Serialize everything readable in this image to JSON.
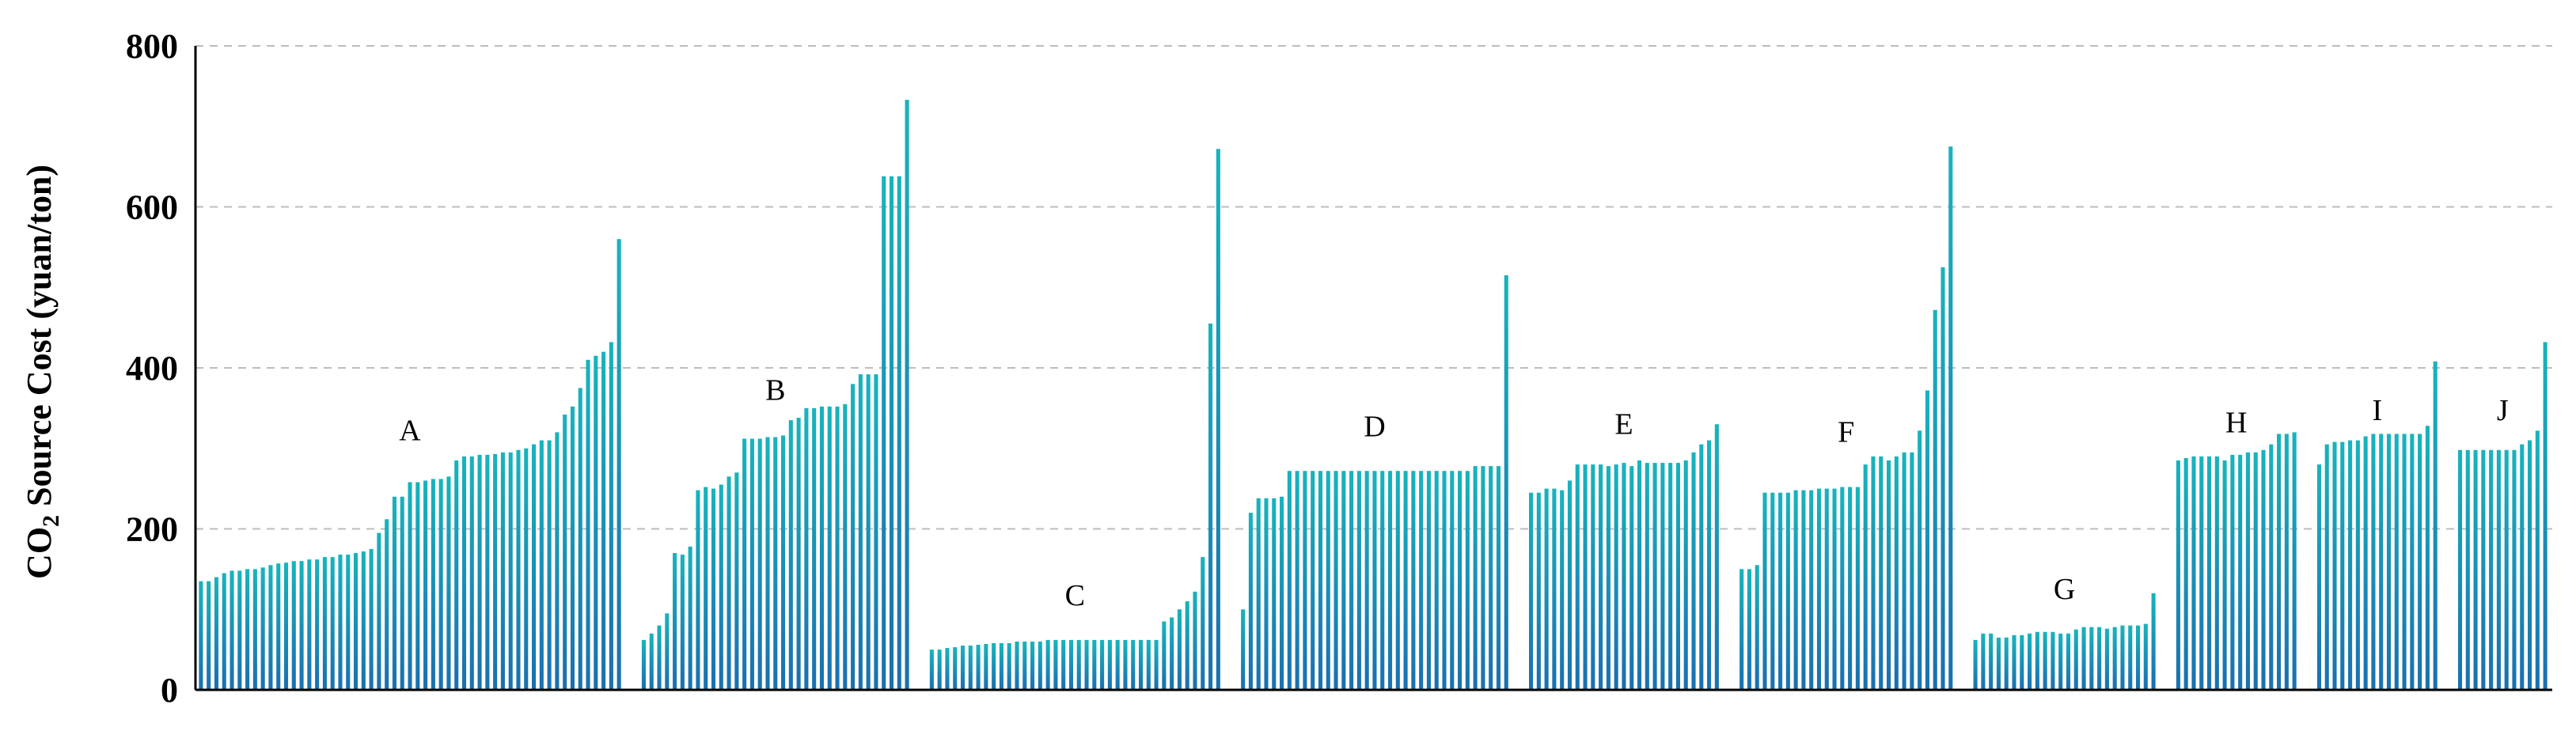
{
  "colors": {
    "bar_top": "#18b4bd",
    "bar_bottom": "#1a6fb0",
    "grid": "#bdbdbd",
    "axis": "#000000"
  },
  "chart_data": {
    "type": "bar",
    "title": "",
    "xlabel": "",
    "ylabel_parts": [
      "CO",
      "2",
      " Source Cost (yuan/ton)"
    ],
    "ylim": [
      0,
      800
    ],
    "yticks": [
      0,
      200,
      400,
      600,
      800
    ],
    "ytick_labels": [
      "0",
      "200",
      "400",
      "600",
      "800"
    ],
    "grid": "horizontal-dashed",
    "groups": [
      {
        "label": "A",
        "label_y": 310,
        "values": [
          135,
          135,
          140,
          145,
          148,
          148,
          150,
          150,
          152,
          155,
          157,
          158,
          160,
          160,
          162,
          162,
          165,
          165,
          168,
          168,
          170,
          172,
          175,
          195,
          212,
          240,
          240,
          258,
          258,
          260,
          262,
          262,
          265,
          285,
          290,
          290,
          292,
          292,
          293,
          295,
          295,
          298,
          300,
          305,
          310,
          310,
          320,
          342,
          352,
          375,
          410,
          415,
          420,
          432,
          560
        ]
      },
      {
        "label": "B",
        "label_y": 360,
        "values": [
          62,
          70,
          80,
          95,
          170,
          168,
          178,
          248,
          252,
          250,
          255,
          265,
          270,
          312,
          312,
          312,
          314,
          314,
          316,
          335,
          338,
          350,
          350,
          352,
          352,
          352,
          355,
          380,
          392,
          392,
          392,
          638,
          638,
          638,
          733
        ]
      },
      {
        "label": "C",
        "label_y": 105,
        "values": [
          50,
          50,
          52,
          53,
          55,
          55,
          56,
          57,
          58,
          58,
          58,
          60,
          60,
          60,
          60,
          62,
          62,
          62,
          62,
          62,
          62,
          62,
          62,
          62,
          62,
          62,
          62,
          62,
          62,
          62,
          85,
          90,
          100,
          110,
          122,
          165,
          455,
          672
        ]
      },
      {
        "label": "D",
        "label_y": 315,
        "values": [
          100,
          220,
          238,
          238,
          238,
          240,
          272,
          272,
          272,
          272,
          272,
          272,
          272,
          272,
          272,
          272,
          272,
          272,
          272,
          272,
          272,
          272,
          272,
          272,
          272,
          272,
          272,
          272,
          272,
          272,
          278,
          278,
          278,
          278,
          515
        ]
      },
      {
        "label": "E",
        "label_y": 318,
        "values": [
          245,
          245,
          250,
          250,
          248,
          260,
          280,
          280,
          280,
          280,
          278,
          280,
          282,
          278,
          285,
          282,
          282,
          282,
          282,
          282,
          285,
          295,
          305,
          310,
          330
        ]
      },
      {
        "label": "F",
        "label_y": 308,
        "values": [
          150,
          150,
          155,
          245,
          245,
          245,
          245,
          248,
          248,
          248,
          250,
          250,
          250,
          252,
          252,
          252,
          280,
          290,
          290,
          285,
          290,
          295,
          295,
          322,
          372,
          472,
          525,
          675
        ]
      },
      {
        "label": "G",
        "label_y": 113,
        "values": [
          62,
          70,
          70,
          65,
          65,
          68,
          68,
          70,
          72,
          72,
          72,
          70,
          70,
          75,
          78,
          78,
          78,
          76,
          78,
          80,
          80,
          80,
          82,
          120
        ]
      },
      {
        "label": "H",
        "label_y": 320,
        "values": [
          285,
          288,
          290,
          290,
          290,
          290,
          285,
          292,
          292,
          295,
          295,
          298,
          305,
          318,
          318,
          320
        ]
      },
      {
        "label": "I",
        "label_y": 335,
        "values": [
          280,
          305,
          308,
          308,
          310,
          310,
          315,
          318,
          318,
          318,
          318,
          318,
          318,
          318,
          328,
          408
        ]
      },
      {
        "label": "J",
        "label_y": 335,
        "values": [
          298,
          298,
          298,
          298,
          298,
          298,
          298,
          298,
          305,
          310,
          322,
          432
        ]
      }
    ]
  }
}
